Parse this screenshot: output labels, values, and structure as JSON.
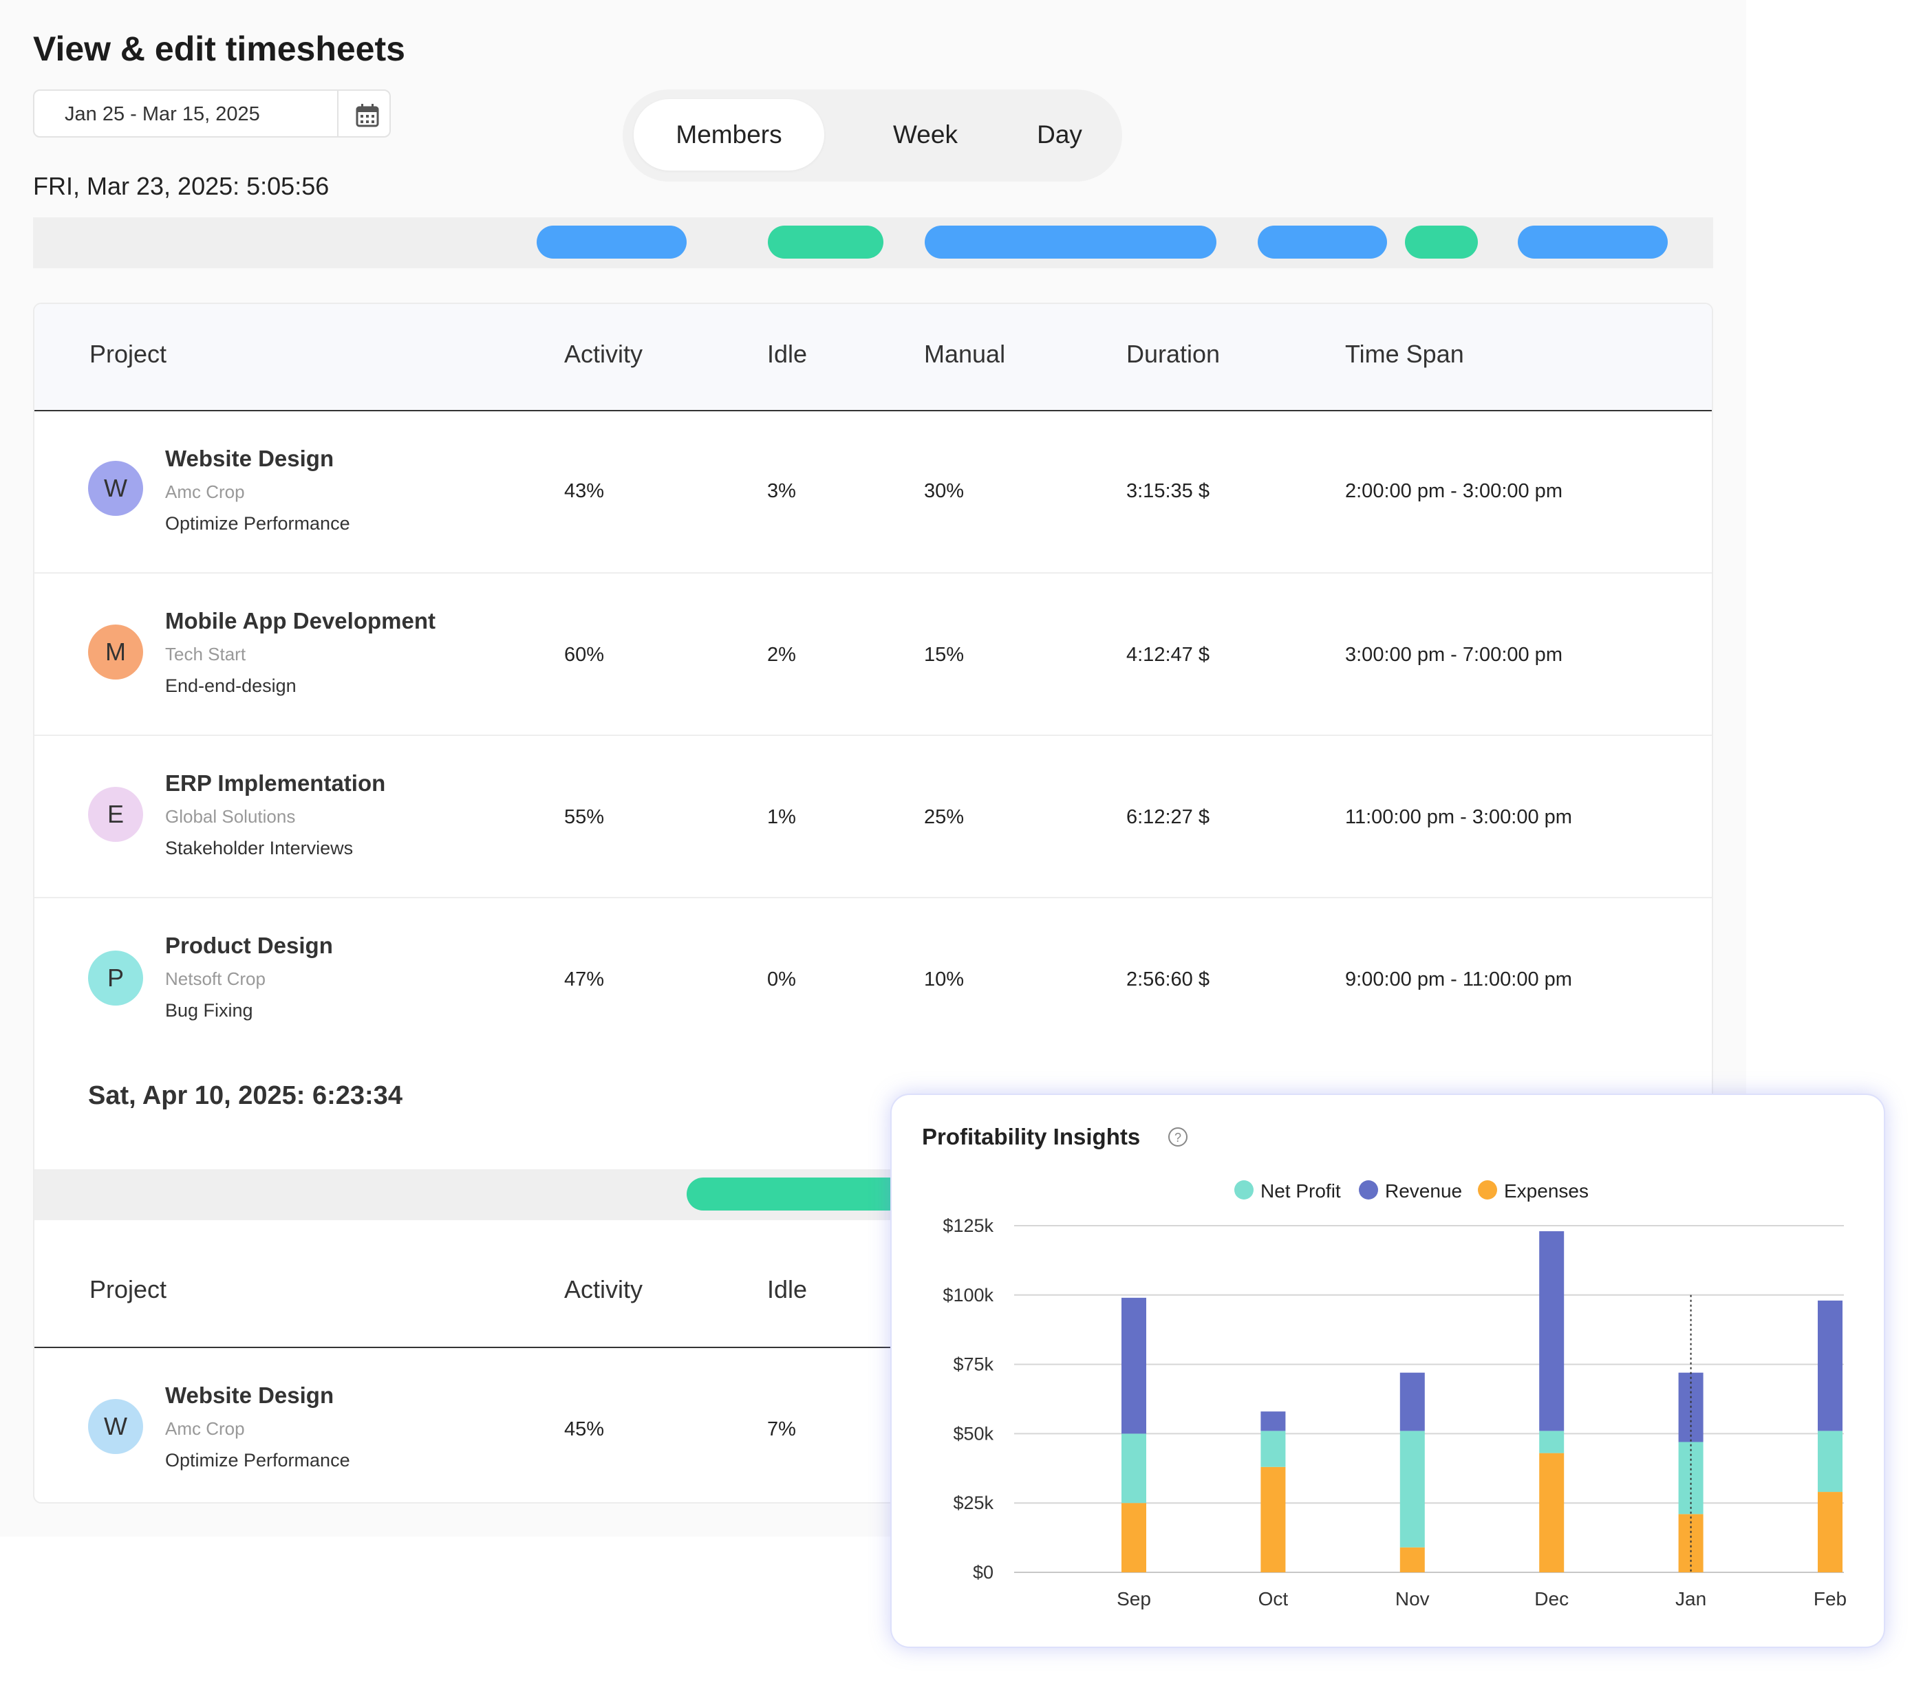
{
  "page_title": "View & edit timesheets",
  "date_range": "Jan 25 - Mar 15, 2025",
  "view_tabs": [
    "Members",
    "Week",
    "Day"
  ],
  "active_tab": "Members",
  "day1_heading": "FRI, Mar 23, 2025: 5:05:56",
  "columns": [
    "Project",
    "Activity",
    "Idle",
    "Manual",
    "Duration",
    "Time Span"
  ],
  "rows": [
    {
      "initial": "W",
      "avatar_color": "#a1a6ee",
      "name": "Website Design",
      "client": "Amc Crop",
      "task": "Optimize Performance",
      "activity": "43%",
      "idle": "3%",
      "manual": "30%",
      "duration": "3:15:35 $",
      "time_span": "2:00:00 pm - 3:00:00 pm"
    },
    {
      "initial": "M",
      "avatar_color": "#f7a776",
      "name": "Mobile App Development",
      "client": "Tech Start",
      "task": "End-end-design",
      "activity": "60%",
      "idle": "2%",
      "manual": "15%",
      "duration": "4:12:47 $",
      "time_span": "3:00:00 pm - 7:00:00 pm"
    },
    {
      "initial": "E",
      "avatar_color": "#edd4f1",
      "name": "ERP Implementation",
      "client": "Global Solutions",
      "task": "Stakeholder Interviews",
      "activity": "55%",
      "idle": "1%",
      "manual": "25%",
      "duration": "6:12:27 $",
      "time_span": "11:00:00 pm - 3:00:00 pm"
    },
    {
      "initial": "P",
      "avatar_color": "#94e6e3",
      "name": "Product Design",
      "client": "Netsoft Crop",
      "task": "Bug Fixing",
      "activity": "47%",
      "idle": "0%",
      "manual": "10%",
      "duration": "2:56:60 $",
      "time_span": "9:00:00 pm - 11:00:00 pm"
    }
  ],
  "day2_heading": "Sat, Apr 10, 2025: 6:23:34",
  "day2_columns": [
    "Project",
    "Activity",
    "Idle"
  ],
  "day2_rows": [
    {
      "initial": "W",
      "avatar_color": "#b8def7",
      "name": "Website Design",
      "client": "Amc Crop",
      "task": "Optimize Performance",
      "activity": "45%",
      "idle": "7%"
    }
  ],
  "colors": {
    "blue_pill": "#4aa3fb",
    "green_pill": "#35d6a0",
    "net_profit": "#7ddfd0",
    "revenue": "#6470c6",
    "expenses": "#fbab34"
  },
  "chart_data": {
    "type": "bar",
    "stacked": true,
    "title": "Profitability Insights",
    "categories": [
      "Sep",
      "Oct",
      "Nov",
      "Dec",
      "Jan",
      "Feb"
    ],
    "series": [
      {
        "name": "Expenses",
        "values": [
          25,
          38,
          9,
          43,
          21,
          29
        ]
      },
      {
        "name": "Net Profit",
        "values": [
          25,
          13,
          42,
          8,
          26,
          22
        ]
      },
      {
        "name": "Revenue",
        "values": [
          49,
          7,
          21,
          72,
          25,
          47
        ]
      }
    ],
    "legend": [
      "Net Profit",
      "Revenue",
      "Expenses"
    ],
    "legend_position": "top",
    "y_ticks": [
      "$125k",
      "$100k",
      "$75k",
      "$50k",
      "$25k",
      "$0"
    ],
    "ylim": [
      0,
      125
    ],
    "grid": true,
    "highlight_category": "Jan"
  }
}
